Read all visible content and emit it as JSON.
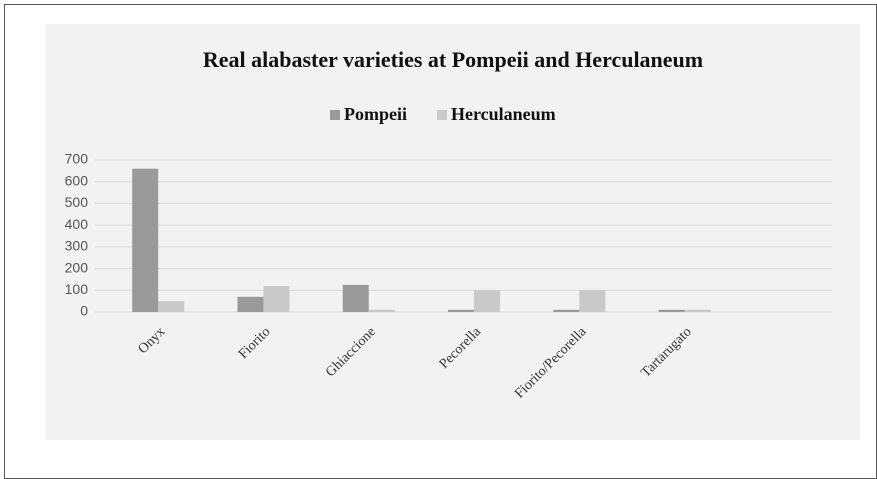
{
  "chart_data": {
    "type": "bar",
    "title": "Real alabaster varieties at Pompeii and Herculaneum",
    "categories": [
      "Onyx",
      "Fiorito",
      "Ghiaccione",
      "Pecorella",
      "Fiorito/Pecorella",
      "Tartarugato",
      null
    ],
    "series": [
      {
        "name": "Pompeii",
        "color": "#9a9a9a",
        "values": [
          660,
          70,
          125,
          10,
          10,
          10,
          null
        ]
      },
      {
        "name": "Herculaneum",
        "color": "#c9c9c9",
        "values": [
          50,
          120,
          10,
          100,
          100,
          10,
          null
        ]
      }
    ],
    "ylim": [
      0,
      700
    ],
    "yticks": [
      0,
      100,
      200,
      300,
      400,
      500,
      600,
      700
    ],
    "grid": true,
    "legend": "top"
  }
}
